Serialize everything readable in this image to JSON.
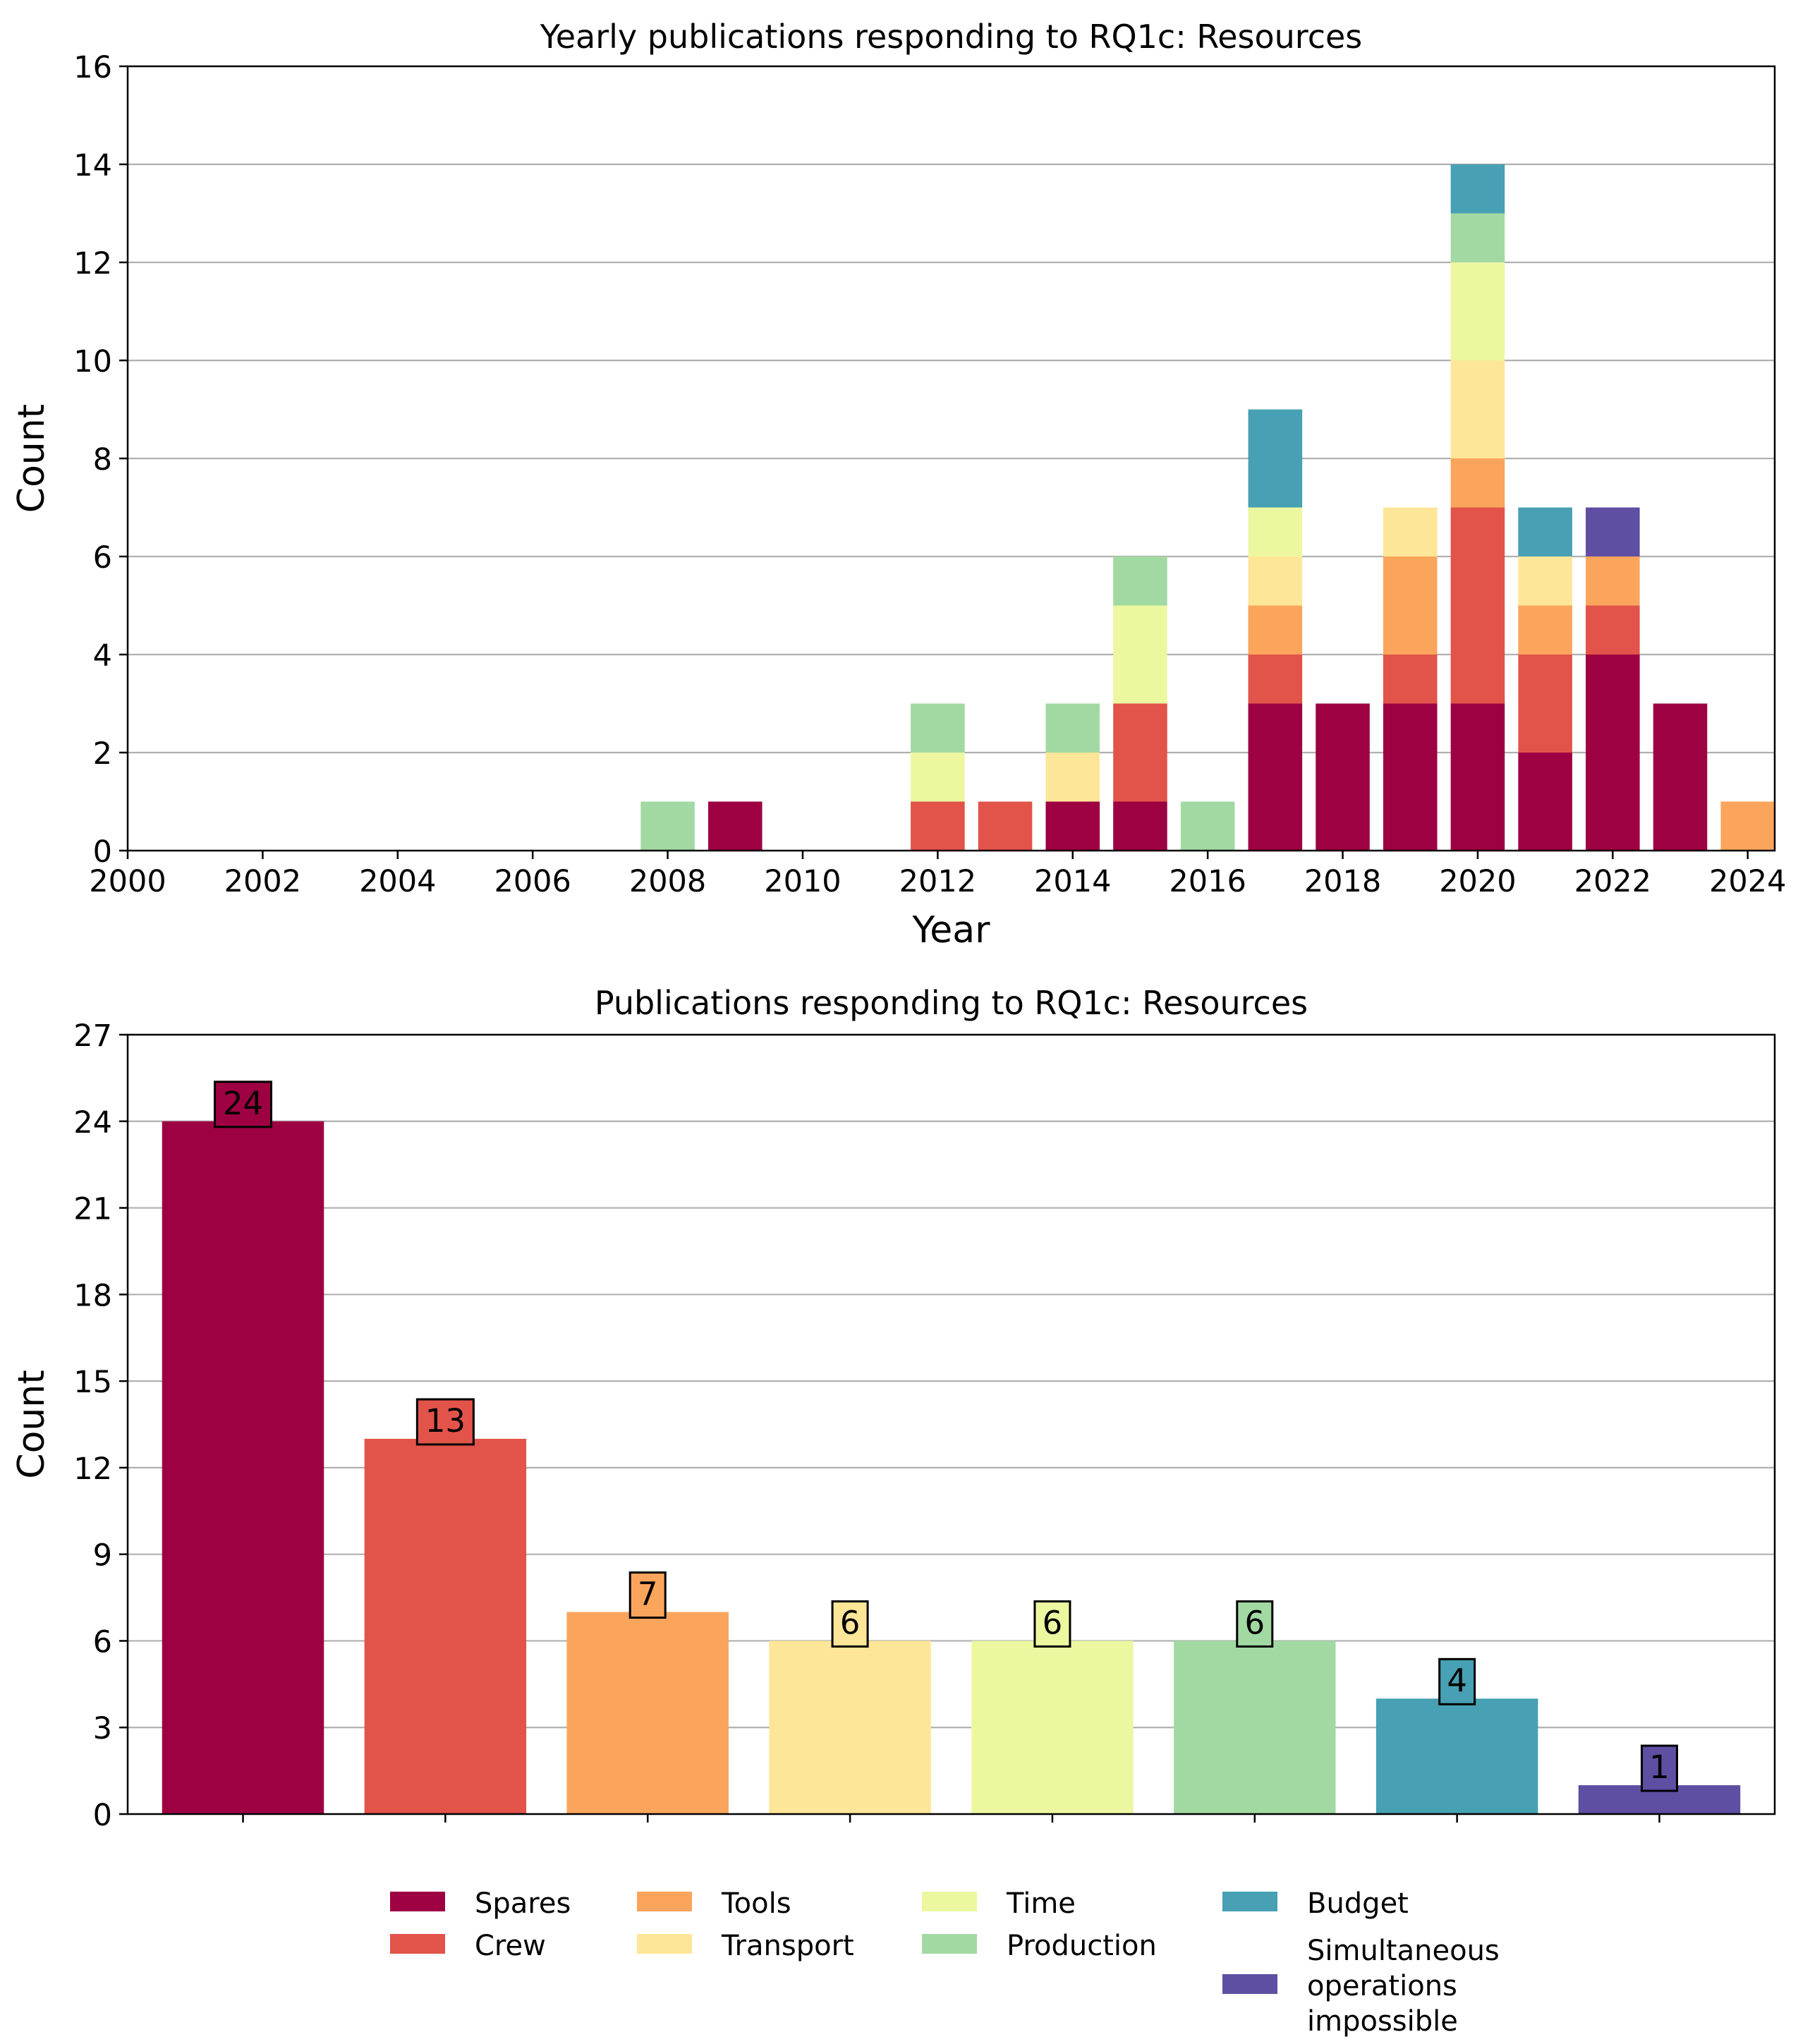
{
  "chart_data": [
    {
      "type": "bar",
      "stacked": true,
      "title": "Yearly publications responding to RQ1c: Resources",
      "xlabel": "Year",
      "ylabel": "Count",
      "xlim": [
        2000,
        2024.4
      ],
      "ylim": [
        0,
        16
      ],
      "x_ticks": [
        2000,
        2002,
        2004,
        2006,
        2008,
        2010,
        2012,
        2014,
        2016,
        2018,
        2020,
        2022,
        2024
      ],
      "y_ticks": [
        0,
        2,
        4,
        6,
        8,
        10,
        12,
        14,
        16
      ],
      "grid": "y",
      "years": [
        2008,
        2009,
        2012,
        2013,
        2014,
        2015,
        2016,
        2017,
        2018,
        2019,
        2020,
        2021,
        2022,
        2023,
        2024
      ],
      "series": [
        {
          "name": "Spares",
          "color": "#9e0142",
          "values": [
            0,
            1,
            0,
            0,
            1,
            1,
            0,
            3,
            3,
            3,
            3,
            2,
            4,
            3,
            0
          ]
        },
        {
          "name": "Crew",
          "color": "#e2534a",
          "values": [
            0,
            0,
            1,
            1,
            0,
            2,
            0,
            1,
            0,
            1,
            4,
            2,
            1,
            0,
            0
          ]
        },
        {
          "name": "Tools",
          "color": "#fba55c",
          "values": [
            0,
            0,
            0,
            0,
            0,
            0,
            0,
            1,
            0,
            2,
            1,
            1,
            1,
            0,
            1
          ]
        },
        {
          "name": "Transport",
          "color": "#fde698",
          "values": [
            0,
            0,
            0,
            0,
            1,
            0,
            0,
            1,
            0,
            1,
            2,
            1,
            0,
            0,
            0
          ]
        },
        {
          "name": "Time",
          "color": "#ecf7a0",
          "values": [
            0,
            0,
            1,
            0,
            0,
            2,
            0,
            1,
            0,
            0,
            2,
            0,
            0,
            0,
            0
          ]
        },
        {
          "name": "Production",
          "color": "#a2d9a3",
          "values": [
            1,
            0,
            1,
            0,
            1,
            1,
            1,
            0,
            0,
            0,
            1,
            0,
            0,
            0,
            0
          ]
        },
        {
          "name": "Budget",
          "color": "#47a0b3",
          "values": [
            0,
            0,
            0,
            0,
            0,
            0,
            0,
            2,
            0,
            0,
            1,
            1,
            0,
            0,
            0
          ]
        },
        {
          "name": "Simultaneous operations impossible",
          "color": "#5e4fa2",
          "values": [
            0,
            0,
            0,
            0,
            0,
            0,
            0,
            0,
            0,
            0,
            0,
            0,
            1,
            0,
            0
          ]
        }
      ]
    },
    {
      "type": "bar",
      "title": "Publications responding to RQ1c: Resources",
      "ylabel": "Count",
      "ylim": [
        0,
        27
      ],
      "y_ticks": [
        0,
        3,
        6,
        9,
        12,
        15,
        18,
        21,
        24,
        27
      ],
      "grid": "y",
      "categories": [
        "Spares",
        "Crew",
        "Tools",
        "Transport",
        "Time",
        "Production",
        "Budget",
        "Simultaneous operations impossible"
      ],
      "values": [
        24,
        13,
        7,
        6,
        6,
        6,
        4,
        1
      ],
      "data_labels": [
        "24",
        "13",
        "7",
        "6",
        "6",
        "6",
        "4",
        "1"
      ],
      "colors": [
        "#9e0142",
        "#e2534a",
        "#fba55c",
        "#fde698",
        "#ecf7a0",
        "#a2d9a3",
        "#47a0b3",
        "#5e4fa2"
      ]
    }
  ],
  "legend": {
    "placement": "bottom-center",
    "entries": [
      {
        "lines": [
          "Spares"
        ],
        "color": "#9e0142"
      },
      {
        "lines": [
          "Crew"
        ],
        "color": "#e2534a"
      },
      {
        "lines": [
          "Tools"
        ],
        "color": "#fba55c"
      },
      {
        "lines": [
          "Transport"
        ],
        "color": "#fde698"
      },
      {
        "lines": [
          "Time"
        ],
        "color": "#ecf7a0"
      },
      {
        "lines": [
          "Production"
        ],
        "color": "#a2d9a3"
      },
      {
        "lines": [
          "Budget"
        ],
        "color": "#47a0b3"
      },
      {
        "lines": [
          "Simultaneous",
          "operations",
          "impossible"
        ],
        "color": "#5e4fa2"
      }
    ]
  }
}
